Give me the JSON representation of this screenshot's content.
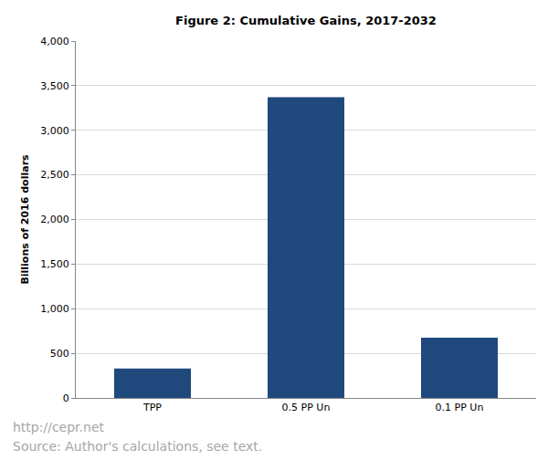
{
  "chart_data": {
    "type": "bar",
    "title": "Figure 2: Cumulative Gains, 2017-2032",
    "y_label": "Billions of 2016 dollars",
    "categories": [
      "TPP",
      "0.5 PP Un",
      "0.1 PP Un"
    ],
    "values": [
      330,
      3370,
      675
    ],
    "color": "#1f497d",
    "ylim": [
      0,
      4000
    ],
    "yticks": [
      0,
      500,
      {
        "value": 1000,
        "label": "1,000"
      },
      {
        "value": 1500,
        "label": "1,500"
      },
      {
        "value": 2000,
        "label": "2,000"
      },
      {
        "value": 2500,
        "label": "2,500"
      },
      {
        "value": 3000,
        "label": "3,000"
      },
      {
        "value": 3500,
        "label": "3,500"
      },
      {
        "value": 4000,
        "label": "4,000"
      }
    ],
    "grid": true,
    "annotations": [
      "http://cepr.net",
      "Source: Author's calculations, see text."
    ]
  }
}
